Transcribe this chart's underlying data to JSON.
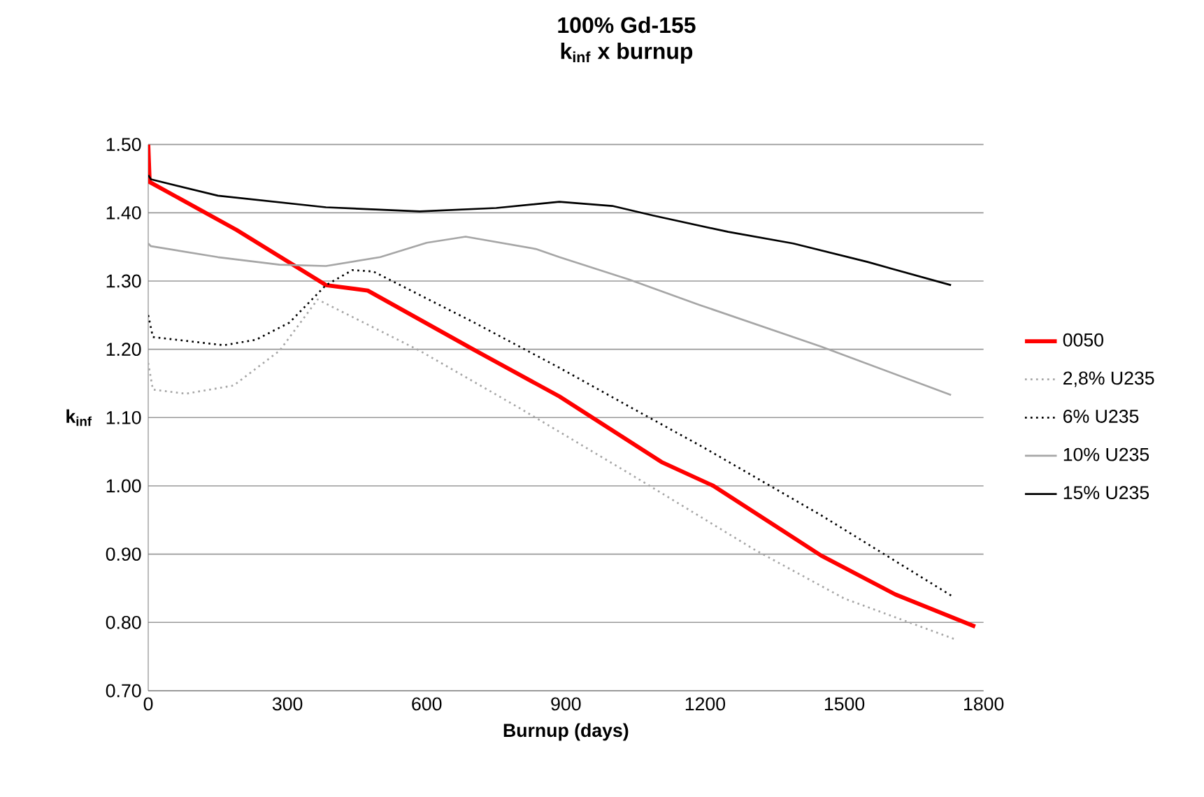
{
  "chart_data": {
    "type": "line",
    "title": "100% Gd-155",
    "subtitle": "k$_{inf}$ x burnup",
    "xlabel": "Burnup (days)",
    "ylabel": "k$_{inf}$",
    "xlim": [
      0,
      1800
    ],
    "xticks": [
      0,
      300,
      600,
      900,
      1200,
      1500,
      1800
    ],
    "ylim": [
      0.7,
      1.5
    ],
    "yticks": [
      {
        "value": 0.7,
        "label": "0.70"
      },
      {
        "value": 0.8,
        "label": "0.80"
      },
      {
        "value": 0.9,
        "label": "0.90"
      },
      {
        "value": 1.0,
        "label": "1.00"
      },
      {
        "value": 1.1,
        "label": "1.10"
      },
      {
        "value": 1.2,
        "label": "1.20"
      },
      {
        "value": 1.3,
        "label": "1.30"
      },
      {
        "value": 1.4,
        "label": "1.40"
      },
      {
        "value": 1.5,
        "label": "1.50"
      }
    ],
    "grid": "y",
    "legend": "right",
    "marker": "none",
    "series": [
      {
        "name": "0050",
        "color": "#ff0000",
        "line_style": "solid",
        "x": [
          0,
          3,
          190,
          383,
          473,
          700,
          886,
          1106,
          1218,
          1450,
          1610,
          1782
        ],
        "values": [
          1.5,
          1.445,
          1.375,
          1.294,
          1.286,
          1.2,
          1.131,
          1.035,
          1.0,
          0.898,
          0.841,
          0.794
        ]
      },
      {
        "name": "2,8% U235",
        "color": "#a6a6a6",
        "line_style": "dotted",
        "x": [
          0,
          10,
          81,
          184,
          283,
          365,
          585,
          800,
          1037,
          1308,
          1500,
          1736
        ],
        "values": [
          1.18,
          1.141,
          1.135,
          1.147,
          1.198,
          1.273,
          1.198,
          1.114,
          1.018,
          0.906,
          0.835,
          0.776
        ]
      },
      {
        "name": "6% U235",
        "color": "#000000",
        "line_style": "dotted",
        "x": [
          0,
          10,
          163,
          232,
          304,
          383,
          440,
          485,
          700,
          886,
          1037,
          1200,
          1450,
          1736
        ],
        "values": [
          1.25,
          1.218,
          1.206,
          1.214,
          1.239,
          1.294,
          1.316,
          1.314,
          1.24,
          1.173,
          1.116,
          1.055,
          0.957,
          0.837
        ]
      },
      {
        "name": "10% U235",
        "color": "#a6a6a6",
        "line_style": "solid",
        "x": [
          0,
          6,
          150,
          283,
          383,
          500,
          600,
          684,
          835,
          886,
          1037,
          1188,
          1450,
          1730
        ],
        "values": [
          1.355,
          1.351,
          1.335,
          1.324,
          1.322,
          1.335,
          1.356,
          1.365,
          1.347,
          1.335,
          1.302,
          1.265,
          1.204,
          1.133
        ]
      },
      {
        "name": "15% U235",
        "color": "#000000",
        "line_style": "solid",
        "x": [
          0,
          6,
          150,
          383,
          585,
          750,
          886,
          1000,
          1088,
          1250,
          1390,
          1550,
          1730
        ],
        "values": [
          1.455,
          1.449,
          1.425,
          1.408,
          1.402,
          1.407,
          1.416,
          1.41,
          1.396,
          1.372,
          1.355,
          1.328,
          1.294
        ]
      }
    ]
  }
}
